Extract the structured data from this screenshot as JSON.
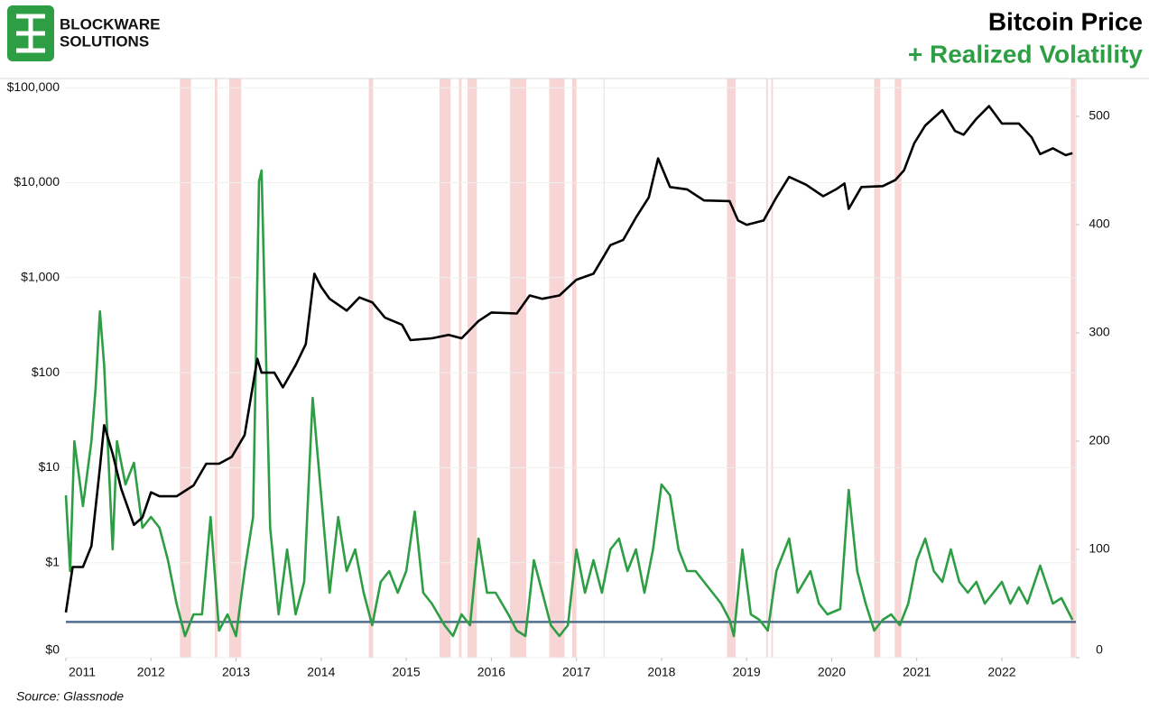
{
  "logo": {
    "line1": "BLOCKWARE",
    "line2": "SOLUTIONS"
  },
  "chart_data": {
    "type": "line",
    "source": "Source: Glassnode",
    "xlim": [
      2011,
      2022.87
    ],
    "xticks": [
      2011,
      2012,
      2013,
      2014,
      2015,
      2016,
      2017,
      2018,
      2019,
      2020,
      2021,
      2022
    ],
    "log_scale": true,
    "grid": true,
    "ylim": [
      0.1,
      125000
    ],
    "yticks": [
      {
        "value": 0.1,
        "label": "$0"
      },
      {
        "value": 1,
        "label": "$1"
      },
      {
        "value": 10,
        "label": "$10"
      },
      {
        "value": 100,
        "label": "$100"
      },
      {
        "value": 1000,
        "label": "$1,000"
      },
      {
        "value": 10000,
        "label": "$10,000"
      },
      {
        "value": 100000,
        "label": "$100,000"
      }
    ],
    "y2lim": [
      0,
      535
    ],
    "y2ticks": [
      0,
      100,
      200,
      300,
      400,
      500
    ],
    "reference_line": {
      "value": 33,
      "axis": "y2",
      "color": "#4f6e8c"
    },
    "shade_color": "#f4c7c7",
    "shaded_ranges": [
      [
        2012.34,
        2012.47
      ],
      [
        2012.75,
        2012.78
      ],
      [
        2012.92,
        2013.06
      ],
      [
        2014.56,
        2014.61
      ],
      [
        2015.39,
        2015.52
      ],
      [
        2015.62,
        2015.65
      ],
      [
        2015.72,
        2015.83
      ],
      [
        2016.22,
        2016.41
      ],
      [
        2016.68,
        2016.86
      ],
      [
        2016.95,
        2017.0
      ],
      [
        2017.32,
        2017.33
      ],
      [
        2018.77,
        2018.87
      ],
      [
        2019.23,
        2019.25
      ],
      [
        2019.29,
        2019.31
      ],
      [
        2020.5,
        2020.57
      ],
      [
        2020.74,
        2020.82
      ],
      [
        2022.81,
        2022.86
      ]
    ],
    "series": [
      {
        "name": "Bitcoin Price",
        "color": "#000000",
        "x": [
          2011.0,
          2011.08,
          2011.2,
          2011.3,
          2011.4,
          2011.45,
          2011.55,
          2011.65,
          2011.8,
          2011.9,
          2012.0,
          2012.1,
          2012.3,
          2012.5,
          2012.65,
          2012.8,
          2012.95,
          2013.1,
          2013.25,
          2013.3,
          2013.45,
          2013.55,
          2013.7,
          2013.82,
          2013.92,
          2014.0,
          2014.1,
          2014.3,
          2014.45,
          2014.6,
          2014.75,
          2014.95,
          2015.05,
          2015.3,
          2015.5,
          2015.65,
          2015.85,
          2016.0,
          2016.3,
          2016.45,
          2016.6,
          2016.8,
          2017.0,
          2017.2,
          2017.4,
          2017.55,
          2017.7,
          2017.85,
          2017.96,
          2018.1,
          2018.3,
          2018.5,
          2018.8,
          2018.9,
          2019.0,
          2019.2,
          2019.35,
          2019.5,
          2019.7,
          2019.9,
          2020.05,
          2020.15,
          2020.2,
          2020.35,
          2020.6,
          2020.75,
          2020.85,
          2020.97,
          2021.1,
          2021.3,
          2021.45,
          2021.55,
          2021.7,
          2021.85,
          2022.0,
          2022.2,
          2022.35,
          2022.45,
          2022.6,
          2022.75,
          2022.83
        ],
        "values": [
          0.3,
          0.9,
          0.9,
          1.5,
          10,
          28,
          14,
          6,
          2.5,
          3,
          5.5,
          5,
          5,
          6.5,
          11,
          11,
          13,
          22,
          140,
          100,
          100,
          70,
          120,
          200,
          1100,
          800,
          600,
          450,
          620,
          550,
          380,
          320,
          220,
          230,
          250,
          230,
          350,
          430,
          420,
          650,
          600,
          650,
          950,
          1100,
          2200,
          2500,
          4300,
          7000,
          18000,
          9000,
          8500,
          6500,
          6400,
          4000,
          3600,
          4000,
          7000,
          11500,
          9500,
          7200,
          8500,
          9800,
          5300,
          9000,
          9200,
          10700,
          13500,
          26000,
          40000,
          58000,
          35000,
          32000,
          47000,
          64000,
          42000,
          42000,
          30000,
          20000,
          23000,
          19500,
          20500
        ]
      },
      {
        "name": "+ Realized Volatility",
        "color": "#2e9e44",
        "axis": "y2",
        "x": [
          2011.0,
          2011.05,
          2011.1,
          2011.2,
          2011.3,
          2011.35,
          2011.4,
          2011.45,
          2011.55,
          2011.6,
          2011.7,
          2011.8,
          2011.9,
          2012.0,
          2012.1,
          2012.2,
          2012.3,
          2012.4,
          2012.5,
          2012.6,
          2012.7,
          2012.8,
          2012.9,
          2013.0,
          2013.1,
          2013.2,
          2013.27,
          2013.3,
          2013.4,
          2013.5,
          2013.6,
          2013.7,
          2013.8,
          2013.9,
          2014.0,
          2014.1,
          2014.2,
          2014.3,
          2014.4,
          2014.5,
          2014.6,
          2014.7,
          2014.8,
          2014.9,
          2015.0,
          2015.1,
          2015.2,
          2015.3,
          2015.45,
          2015.55,
          2015.65,
          2015.75,
          2015.85,
          2015.95,
          2016.05,
          2016.2,
          2016.3,
          2016.4,
          2016.5,
          2016.6,
          2016.7,
          2016.8,
          2016.9,
          2017.0,
          2017.1,
          2017.2,
          2017.3,
          2017.4,
          2017.5,
          2017.6,
          2017.7,
          2017.8,
          2017.9,
          2018.0,
          2018.1,
          2018.2,
          2018.3,
          2018.4,
          2018.5,
          2018.6,
          2018.7,
          2018.8,
          2018.85,
          2018.95,
          2019.05,
          2019.15,
          2019.25,
          2019.35,
          2019.5,
          2019.6,
          2019.75,
          2019.85,
          2019.95,
          2020.1,
          2020.2,
          2020.3,
          2020.4,
          2020.5,
          2020.6,
          2020.7,
          2020.8,
          2020.9,
          2021.0,
          2021.1,
          2021.2,
          2021.3,
          2021.4,
          2021.5,
          2021.6,
          2021.7,
          2021.8,
          2021.9,
          2022.0,
          2022.1,
          2022.2,
          2022.3,
          2022.45,
          2022.6,
          2022.7,
          2022.83
        ],
        "values": [
          150,
          80,
          200,
          140,
          200,
          250,
          320,
          270,
          100,
          200,
          160,
          180,
          120,
          130,
          120,
          90,
          50,
          20,
          40,
          40,
          130,
          25,
          40,
          20,
          80,
          130,
          440,
          450,
          120,
          40,
          100,
          40,
          70,
          240,
          150,
          60,
          130,
          80,
          100,
          60,
          30,
          70,
          80,
          60,
          80,
          135,
          60,
          50,
          30,
          20,
          40,
          30,
          110,
          60,
          60,
          40,
          25,
          20,
          90,
          60,
          30,
          20,
          30,
          100,
          60,
          90,
          60,
          100,
          110,
          80,
          100,
          60,
          100,
          160,
          150,
          100,
          80,
          80,
          70,
          60,
          50,
          35,
          20,
          100,
          40,
          35,
          25,
          80,
          110,
          60,
          80,
          50,
          40,
          45,
          155,
          80,
          50,
          25,
          35,
          40,
          30,
          50,
          90,
          110,
          80,
          70,
          100,
          70,
          60,
          70,
          50,
          60,
          70,
          50,
          65,
          50,
          85,
          50,
          55,
          35
        ]
      }
    ]
  }
}
